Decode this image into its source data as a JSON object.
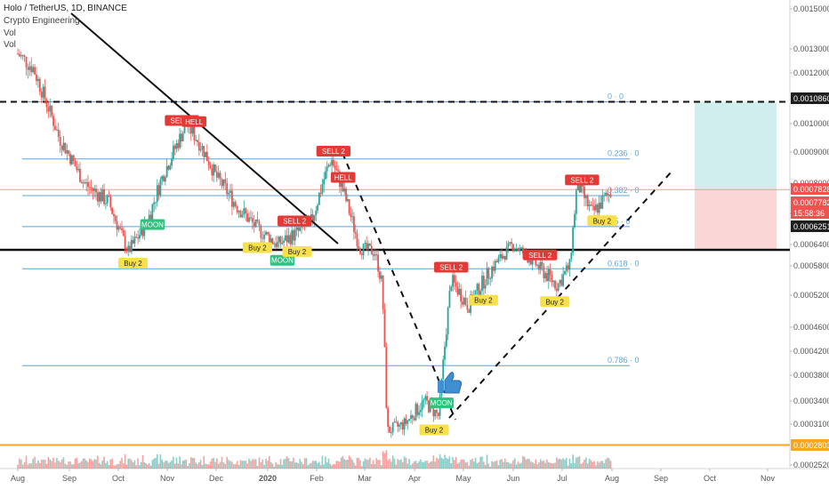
{
  "header": {
    "title": "Holo / TetherUS, 1D, BINANCE",
    "indicator": "Crypto Engineering",
    "vol1": "Vol",
    "vol2": "Vol"
  },
  "colors": {
    "up": "#26a69a",
    "down": "#ef5350",
    "fib": "#5aa5d9",
    "orange": "#f5a623",
    "target_zone": "#cfeeed",
    "stop_zone": "#fbd6d6",
    "moon": "#2ec27e",
    "buy": "#f7e14a",
    "sell": "#e53935",
    "thumb": "#3f8fd2"
  },
  "chart_data": {
    "type": "candlestick",
    "symbol": "HOTUSDT",
    "x_ticks": [
      "Aug",
      "Sep",
      "Oct",
      "Nov",
      "Dec",
      "2020",
      "Feb",
      "Mar",
      "Apr",
      "May",
      "Jun",
      "Jul",
      "Aug",
      "Sep",
      "Oct",
      "Nov"
    ],
    "y_ticks": [
      "0.0015000",
      "0.0013000",
      "0.0012000",
      "0.0010000",
      "0.0009000",
      "0.0008000",
      "0.0007200",
      "0.0006400",
      "0.0005800",
      "0.0005200",
      "0.0004600",
      "0.0004200",
      "0.0003800",
      "0.0003400",
      "0.0003100",
      "0.0002520"
    ],
    "price_labels": [
      {
        "text": "0.0010860",
        "color": "#1e1e1e"
      },
      {
        "text": "0.0007828",
        "color": "#ef5350"
      },
      {
        "text": "0.0007782",
        "color": "#ef5350"
      },
      {
        "text": "15:58:36",
        "color": "#ef5350"
      },
      {
        "text": "0.0006251",
        "color": "#1e1e1e"
      },
      {
        "text": "0.0002803",
        "color": "#f5a623"
      }
    ],
    "fib_levels": [
      {
        "label": "0 · 0",
        "price": 0.001086
      },
      {
        "label": "0.236 · 0",
        "price": 0.000878
      },
      {
        "label": "0.382 · 0",
        "price": 0.000767
      },
      {
        "label": "0.5 · 0",
        "price": 0.000686
      },
      {
        "label": "0.618 · 0",
        "price": 0.000574
      },
      {
        "label": "0.786 · 0",
        "price": 0.000396
      }
    ],
    "support_price": 0.0006251,
    "orange_price": 0.0002803,
    "current_price": 0.0007828,
    "signals": [
      {
        "text": "SELL 2",
        "kind": "sell",
        "month": 3.3
      },
      {
        "text": "HELL",
        "kind": "sell",
        "month": 3.55
      },
      {
        "text": "MOON",
        "kind": "moon",
        "month": 2.7
      },
      {
        "text": "Buy 2",
        "kind": "buy",
        "month": 2.3
      },
      {
        "text": "Buy 2",
        "kind": "buy",
        "month": 4.8
      },
      {
        "text": "SELL 2",
        "kind": "sell",
        "month": 5.55
      },
      {
        "text": "MOON",
        "kind": "moon",
        "month": 5.3
      },
      {
        "text": "Buy 2",
        "kind": "buy",
        "month": 5.6
      },
      {
        "text": "SELL 2",
        "kind": "sell",
        "month": 6.35
      },
      {
        "text": "HELL",
        "kind": "sell",
        "month": 6.55
      },
      {
        "text": "Buy 2",
        "kind": "buy",
        "month": 8.4
      },
      {
        "text": "MOON",
        "kind": "moon",
        "month": 8.55
      },
      {
        "text": "SELL 2",
        "kind": "sell",
        "month": 8.75
      },
      {
        "text": "Buy 2",
        "kind": "buy",
        "month": 9.4
      },
      {
        "text": "SELL 2",
        "kind": "sell",
        "month": 10.55
      },
      {
        "text": "Buy 2",
        "kind": "buy",
        "month": 10.85
      },
      {
        "text": "SELL 2",
        "kind": "sell",
        "month": 11.4
      },
      {
        "text": "Buy 2",
        "kind": "buy",
        "month": 11.8
      }
    ]
  }
}
